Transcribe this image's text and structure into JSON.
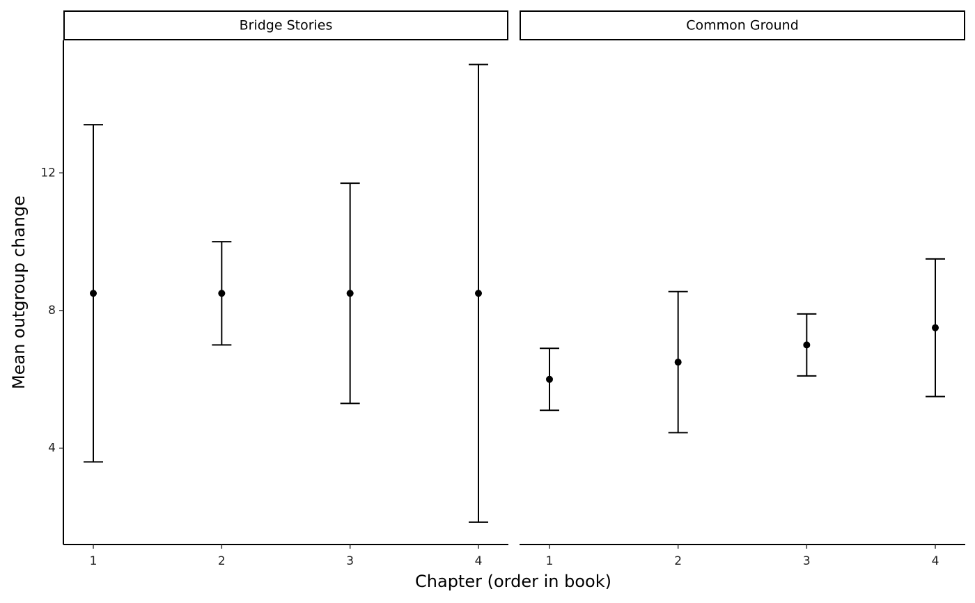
{
  "chart_data": {
    "type": "errorbar",
    "x_label": "Chapter (order in book)",
    "y_label": "Mean outgroup change",
    "ylim": [
      1.2,
      15.85
    ],
    "yticks": [
      4,
      8,
      12
    ],
    "color": "#000000",
    "panels": [
      {
        "title": "Bridge Stories",
        "categories": [
          "1",
          "2",
          "3",
          "4"
        ],
        "values": [
          8.5,
          8.5,
          8.5,
          8.5
        ],
        "errors": [
          4.9,
          1.5,
          3.2,
          6.65
        ]
      },
      {
        "title": "Common Ground",
        "categories": [
          "1",
          "2",
          "3",
          "4"
        ],
        "values": [
          6.0,
          6.5,
          7.0,
          7.5
        ],
        "errors": [
          0.9,
          2.05,
          0.9,
          2.0
        ]
      }
    ]
  }
}
